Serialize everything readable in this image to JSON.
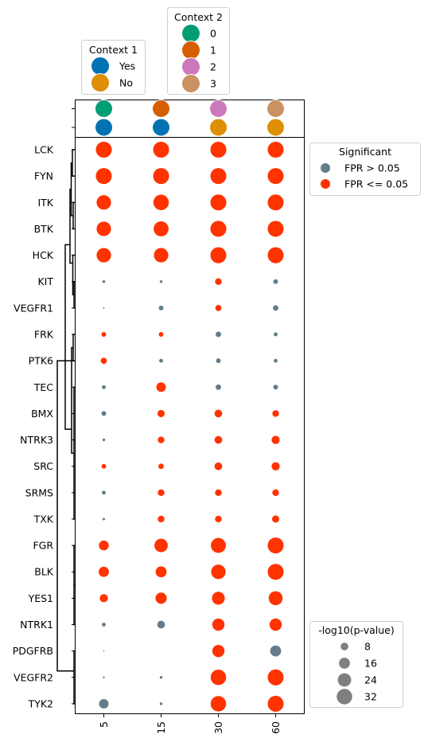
{
  "chart_data": {
    "type": "scatter",
    "title": "",
    "xlabel": "",
    "ylabel": "",
    "x_categories": [
      "5",
      "15",
      "30",
      "60"
    ],
    "y_categories": [
      "LCK",
      "FYN",
      "ITK",
      "BTK",
      "HCK",
      "KIT",
      "VEGFR1",
      "FRK",
      "PTK6",
      "TEC",
      "BMX",
      "NTRK3",
      "SRC",
      "SRMS",
      "TXK",
      "FGR",
      "BLK",
      "YES1",
      "NTRK1",
      "PDGFRB",
      "VEGFR2",
      "TYK2"
    ],
    "size_metric": "-log10(p-value)",
    "points": [
      {
        "y": "LCK",
        "values": [
          34,
          34,
          34,
          34
        ],
        "significant": [
          true,
          true,
          true,
          true
        ]
      },
      {
        "y": "FYN",
        "values": [
          34,
          34,
          34,
          34
        ],
        "significant": [
          true,
          true,
          true,
          true
        ]
      },
      {
        "y": "ITK",
        "values": [
          28,
          32,
          34,
          34
        ],
        "significant": [
          true,
          true,
          true,
          true
        ]
      },
      {
        "y": "BTK",
        "values": [
          28,
          30,
          34,
          34
        ],
        "significant": [
          true,
          true,
          true,
          true
        ]
      },
      {
        "y": "HCK",
        "values": [
          28,
          28,
          34,
          34
        ],
        "significant": [
          true,
          true,
          true,
          true
        ]
      },
      {
        "y": "KIT",
        "values": [
          1,
          1,
          6,
          3
        ],
        "significant": [
          false,
          false,
          true,
          false
        ]
      },
      {
        "y": "VEGFR1",
        "values": [
          0.3,
          3,
          5,
          4
        ],
        "significant": [
          false,
          false,
          true,
          false
        ]
      },
      {
        "y": "FRK",
        "values": [
          3,
          3,
          4,
          2
        ],
        "significant": [
          true,
          true,
          false,
          false
        ]
      },
      {
        "y": "PTK6",
        "values": [
          5,
          2,
          3,
          2
        ],
        "significant": [
          true,
          false,
          false,
          false
        ]
      },
      {
        "y": "TEC",
        "values": [
          2,
          12,
          4,
          3
        ],
        "significant": [
          false,
          true,
          false,
          false
        ]
      },
      {
        "y": "BMX",
        "values": [
          3,
          7,
          8,
          6
        ],
        "significant": [
          false,
          true,
          true,
          true
        ]
      },
      {
        "y": "NTRK3",
        "values": [
          1,
          6,
          8,
          9
        ],
        "significant": [
          false,
          true,
          true,
          true
        ]
      },
      {
        "y": "SRC",
        "values": [
          3,
          4,
          8,
          9
        ],
        "significant": [
          true,
          true,
          true,
          true
        ]
      },
      {
        "y": "SRMS",
        "values": [
          2,
          6,
          6,
          6
        ],
        "significant": [
          false,
          true,
          true,
          true
        ]
      },
      {
        "y": "TXK",
        "values": [
          0.8,
          6,
          6,
          7
        ],
        "significant": [
          false,
          true,
          true,
          true
        ]
      },
      {
        "y": "FGR",
        "values": [
          13,
          24,
          30,
          34
        ],
        "significant": [
          true,
          true,
          true,
          true
        ]
      },
      {
        "y": "BLK",
        "values": [
          14,
          16,
          28,
          34
        ],
        "significant": [
          true,
          true,
          true,
          true
        ]
      },
      {
        "y": "YES1",
        "values": [
          9,
          17,
          22,
          26
        ],
        "significant": [
          true,
          true,
          true,
          true
        ]
      },
      {
        "y": "NTRK1",
        "values": [
          2,
          8,
          20,
          20
        ],
        "significant": [
          false,
          false,
          true,
          true
        ]
      },
      {
        "y": "PDGFRB",
        "values": [
          0.2,
          0,
          20,
          16
        ],
        "significant": [
          false,
          false,
          true,
          false
        ]
      },
      {
        "y": "VEGFR2",
        "values": [
          0.5,
          1,
          32,
          34
        ],
        "significant": [
          false,
          false,
          true,
          true
        ]
      },
      {
        "y": "TYK2",
        "values": [
          12,
          1,
          32,
          34
        ],
        "significant": [
          false,
          false,
          true,
          true
        ]
      }
    ],
    "context_1": {
      "title": "Context 1",
      "legend_labels": [
        "Yes",
        "No"
      ],
      "values": [
        "Yes",
        "Yes",
        "No",
        "No"
      ]
    },
    "context_2": {
      "title": "Context 2",
      "legend_labels": [
        "0",
        "1",
        "2",
        "3"
      ],
      "values": [
        "0",
        "1",
        "2",
        "3"
      ]
    },
    "significance_legend": {
      "title": "Significant",
      "labels": [
        "FPR > 0.05",
        "FPR <= 0.05"
      ]
    },
    "size_legend": {
      "title": "-log10(p-value)",
      "labels": [
        "8",
        "16",
        "24",
        "32"
      ]
    },
    "colors": {
      "significant": "#ff3300",
      "not_significant": "#647d8a",
      "context1_yes": "#0173b2",
      "context1_no": "#de8f05",
      "context2_0": "#029e73",
      "context2_1": "#d55e00",
      "context2_2": "#cc78bc",
      "context2_3": "#ca9161",
      "size_swatch": "#808080"
    }
  }
}
